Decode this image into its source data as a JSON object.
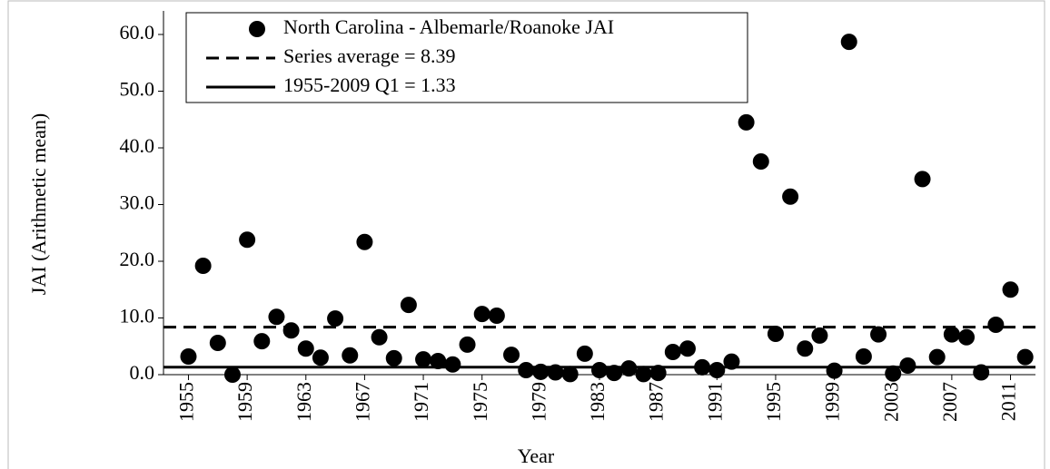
{
  "chart_data": {
    "type": "scatter",
    "x_label": "Year",
    "y_label": "JAI (Arithmetic mean)",
    "xlim": [
      1953.3,
      2012.7
    ],
    "xticks": [
      1955,
      1959,
      1963,
      1967,
      1971,
      1975,
      1979,
      1983,
      1987,
      1991,
      1995,
      1999,
      2003,
      2007,
      2011
    ],
    "ylim": [
      0,
      60
    ],
    "yticks": [
      {
        "value": 0,
        "label": "0.0"
      },
      {
        "value": 10,
        "label": "10.0"
      },
      {
        "value": 20,
        "label": "20.0"
      },
      {
        "value": 30,
        "label": "30.0"
      },
      {
        "value": 40,
        "label": "40.0"
      },
      {
        "value": 50,
        "label": "50.0"
      },
      {
        "value": 60,
        "label": "60.0"
      }
    ],
    "series": [
      {
        "name": "North Carolina - Albemarle/Roanoke JAI",
        "color": "#000000",
        "x": [
          1955,
          1956,
          1957,
          1958,
          1959,
          1960,
          1961,
          1962,
          1963,
          1964,
          1965,
          1966,
          1967,
          1968,
          1969,
          1970,
          1971,
          1972,
          1973,
          1974,
          1975,
          1976,
          1977,
          1978,
          1979,
          1980,
          1981,
          1982,
          1983,
          1984,
          1985,
          1986,
          1987,
          1988,
          1989,
          1990,
          1991,
          1992,
          1993,
          1994,
          1995,
          1996,
          1997,
          1998,
          1999,
          2000,
          2001,
          2002,
          2003,
          2004,
          2005,
          2006,
          2007,
          2008,
          2009,
          2010,
          2011,
          2012
        ],
        "values": [
          3.2,
          19.2,
          5.6,
          0.0,
          23.8,
          5.9,
          10.2,
          7.8,
          4.6,
          3.0,
          9.9,
          3.4,
          23.4,
          6.6,
          2.9,
          12.3,
          2.7,
          2.4,
          1.8,
          5.3,
          10.7,
          10.4,
          3.5,
          0.8,
          0.5,
          0.4,
          0.1,
          3.7,
          0.8,
          0.3,
          1.1,
          0.1,
          0.3,
          4.0,
          4.6,
          1.3,
          0.8,
          2.3,
          44.5,
          37.6,
          7.2,
          31.4,
          4.6,
          6.9,
          0.7,
          58.7,
          3.2,
          7.1,
          0.2,
          1.6,
          34.5,
          3.1,
          7.1,
          6.6,
          0.4,
          8.8,
          15.0,
          3.1
        ]
      }
    ],
    "reference_lines": [
      {
        "name": "Series average = 8.39",
        "value": 8.39,
        "style": "dashed",
        "color": "#000000"
      },
      {
        "name": "1955-2009 Q1 = 1.33",
        "value": 1.33,
        "style": "solid",
        "color": "#000000"
      }
    ],
    "legend": "top-left"
  }
}
